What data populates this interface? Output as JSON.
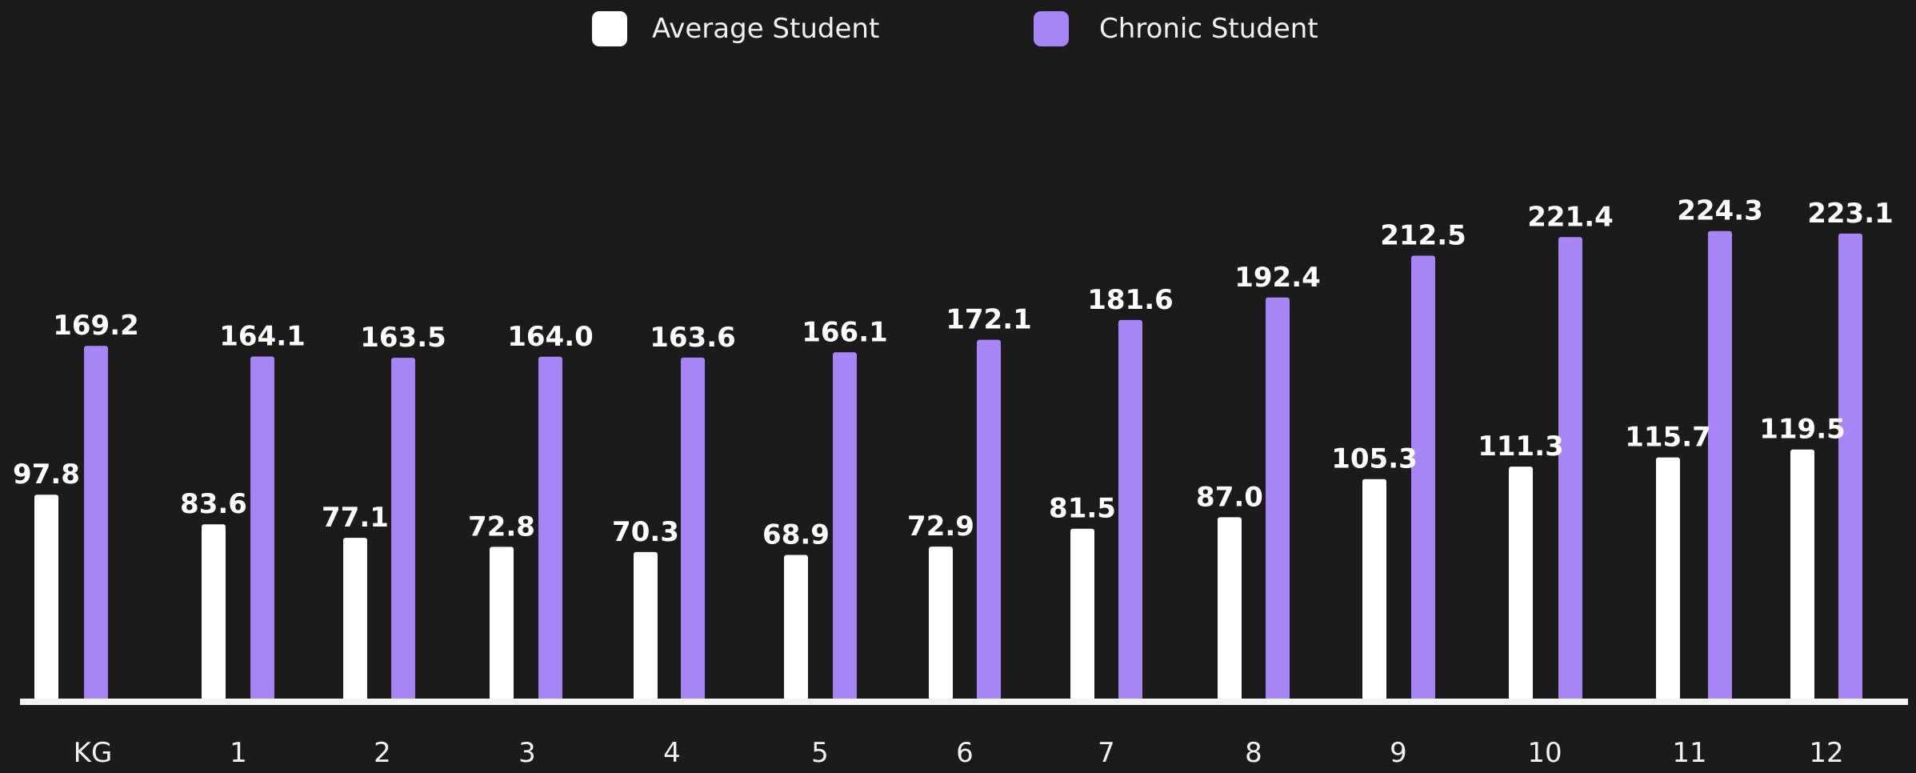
{
  "chart_data": {
    "type": "bar",
    "title": "",
    "xlabel": "",
    "ylabel": "",
    "categories": [
      "KG",
      "1",
      "2",
      "3",
      "4",
      "5",
      "6",
      "7",
      "8",
      "9",
      "10",
      "11",
      "12"
    ],
    "series": [
      {
        "name": "Average Student",
        "color": "#ffffff",
        "values": [
          97.8,
          83.6,
          77.1,
          72.8,
          70.3,
          68.9,
          72.9,
          81.5,
          87.0,
          105.3,
          111.3,
          115.7,
          119.5
        ],
        "labels": [
          "97.8",
          "83.6",
          "77.1",
          "72.8",
          "70.3",
          "68.9",
          "72.9",
          "81.5",
          "87.0",
          "105.3",
          "111.3",
          "115.7",
          "119.5"
        ]
      },
      {
        "name": "Chronic Student",
        "color": "#a785f5",
        "values": [
          169.2,
          164.1,
          163.5,
          164.0,
          163.6,
          166.1,
          172.1,
          181.6,
          192.4,
          212.5,
          221.4,
          224.3,
          223.1
        ],
        "labels": [
          "169.2",
          "164.1",
          "163.5",
          "164.0",
          "163.6",
          "166.1",
          "172.1",
          "181.6",
          "192.4",
          "212.5",
          "221.4",
          "224.3",
          "223.1"
        ]
      }
    ],
    "ylim": [
      0,
      230
    ],
    "grid": false,
    "legend": "top-center",
    "data_labels": true
  }
}
